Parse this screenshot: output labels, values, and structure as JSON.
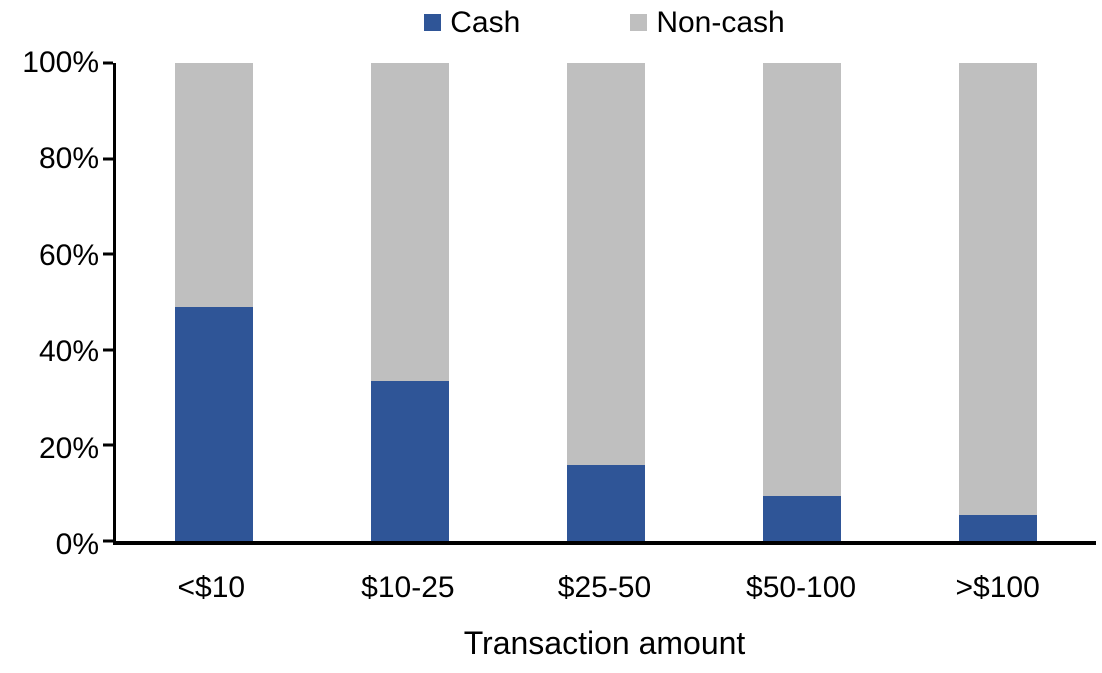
{
  "chart_data": {
    "type": "bar",
    "stacked": true,
    "orientation": "vertical",
    "title": "",
    "xlabel": "Transaction amount",
    "ylabel": "",
    "categories": [
      "<$10",
      "$10-25",
      "$25-50",
      "$50-100",
      ">$100"
    ],
    "series": [
      {
        "name": "Cash",
        "color": "#2F5597",
        "values": [
          49,
          33.5,
          16,
          9.5,
          5.5
        ]
      },
      {
        "name": "Non-cash",
        "color": "#BFBFBF",
        "values": [
          51,
          66.5,
          84,
          90.5,
          94.5
        ]
      }
    ],
    "ylim": [
      0,
      100
    ],
    "ytick_labels": [
      "0%",
      "20%",
      "40%",
      "60%",
      "80%",
      "100%"
    ],
    "ytick_values": [
      0,
      20,
      40,
      60,
      80,
      100
    ],
    "legend_position": "top-center",
    "grid": false,
    "axis_color": "#000000"
  }
}
